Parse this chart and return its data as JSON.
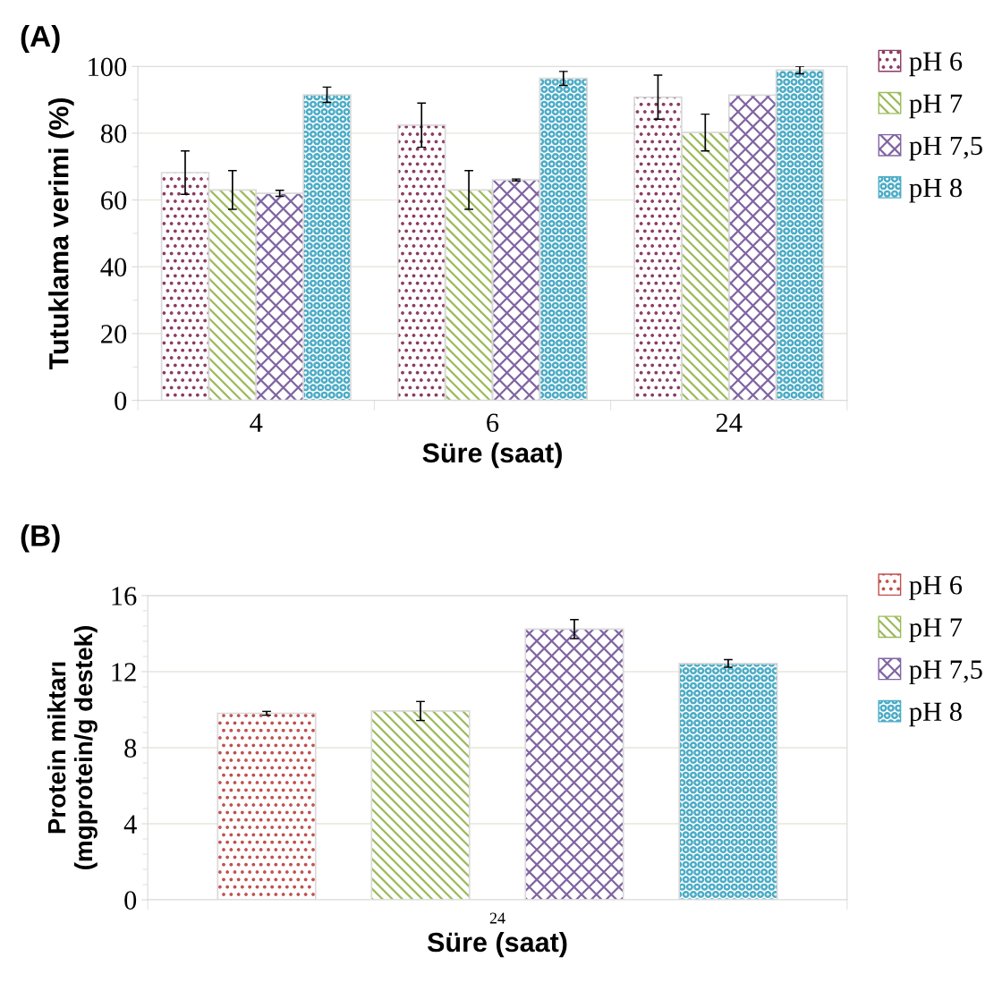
{
  "chart_data": [
    {
      "type": "bar",
      "title": "(A)",
      "xlabel": "Süre (saat)",
      "ylabel": "Tutuklama verimi (%)",
      "categories": [
        "4",
        "6",
        "24"
      ],
      "series": [
        {
          "name": "pH 6",
          "color": "#8b3a62",
          "values": [
            68.2,
            82.4,
            90.8
          ],
          "errors": [
            6.5,
            6.6,
            6.6
          ]
        },
        {
          "name": "pH 7",
          "color": "#9bbb59",
          "values": [
            63.0,
            63.0,
            80.2
          ],
          "errors": [
            5.8,
            5.8,
            5.5
          ]
        },
        {
          "name": "pH 7,5",
          "color": "#8064a2",
          "values": [
            62.0,
            66.0,
            91.4
          ],
          "errors": [
            0.9,
            0.3,
            null
          ]
        },
        {
          "name": "pH 8",
          "color": "#4bacc6",
          "values": [
            91.5,
            96.4,
            98.9
          ],
          "errors": [
            2.3,
            2.1,
            1.1
          ]
        }
      ],
      "ylim": [
        0,
        100
      ],
      "yticks": [
        0,
        20,
        40,
        60,
        80,
        100
      ],
      "grid": "y",
      "legend": "right"
    },
    {
      "type": "bar",
      "title": "(B)",
      "xlabel": "Süre (saat)",
      "ylabel": "Protein miktarı\n(mgprotein/g destek)",
      "categories": [
        "24"
      ],
      "series": [
        {
          "name": "pH 6",
          "color": "#c0504d",
          "values": [
            9.81
          ],
          "errors": [
            0.1
          ]
        },
        {
          "name": "pH 7",
          "color": "#9bbb59",
          "values": [
            9.93
          ],
          "errors": [
            0.5
          ]
        },
        {
          "name": "pH 7,5",
          "color": "#8064a2",
          "values": [
            14.24
          ],
          "errors": [
            0.5
          ]
        },
        {
          "name": "pH 8",
          "color": "#4bacc6",
          "values": [
            12.43
          ],
          "errors": [
            0.2
          ]
        }
      ],
      "ylim": [
        0,
        16
      ],
      "yticks": [
        0,
        4,
        8,
        12,
        16
      ],
      "grid": "y",
      "legend": "right"
    }
  ]
}
